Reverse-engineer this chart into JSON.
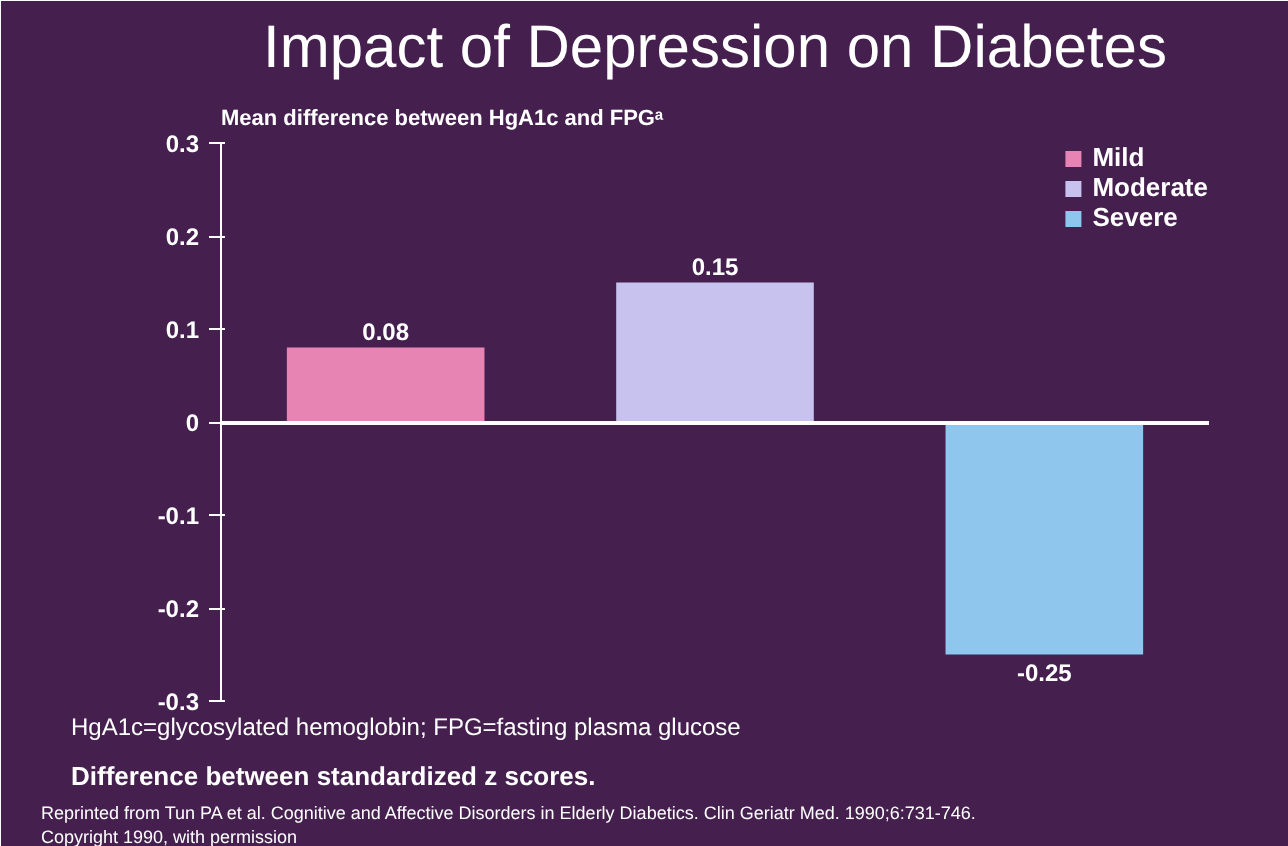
{
  "chart_data": {
    "type": "bar",
    "title": "Impact of Depression on Diabetes",
    "subtitle": "Mean difference between HgA1c and FPGᵃ",
    "categories": [
      null,
      null,
      null
    ],
    "series": [
      {
        "name": "Mild",
        "color": "#e884b4",
        "values": [
          0.08,
          null,
          null
        ]
      },
      {
        "name": "Moderate",
        "color": "#c8c2ee",
        "values": [
          null,
          0.15,
          null
        ]
      },
      {
        "name": "Severe",
        "color": "#8ec6ee",
        "values": [
          null,
          null,
          -0.25
        ]
      }
    ],
    "ylim": [
      -0.3,
      0.3
    ],
    "yticks": [
      0.3,
      0.2,
      0.1,
      0,
      -0.1,
      -0.2,
      -0.3
    ],
    "data_labels": true,
    "legend": "top right",
    "annotations": [
      "HgA1c=glycosylated hemoglobin; FPG=fasting plasma glucose",
      "Difference between standardized z scores.",
      "Reprinted from Tun PA et al. Cognitive and Affective Disorders in Elderly Diabetics. Clin Geriatr Med. 1990;6:731-746.",
      "Copyright 1990, with permission"
    ]
  }
}
